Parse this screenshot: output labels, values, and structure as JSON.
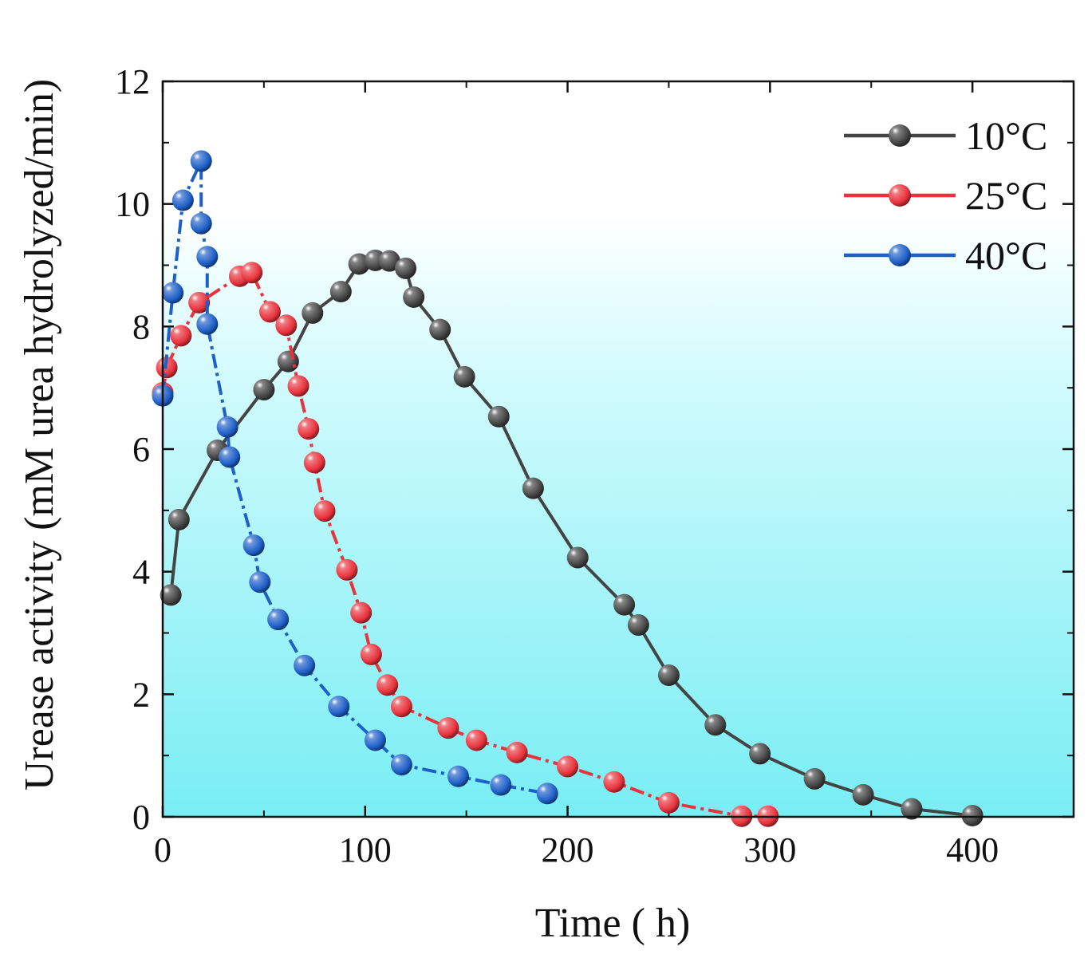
{
  "chart_data": {
    "type": "line",
    "title": "",
    "xlabel": "Time ( h)",
    "ylabel": "Urease activity (mM urea hydrolyzed/min)",
    "xlim": [
      0,
      450
    ],
    "ylim": [
      0,
      12
    ],
    "xticks": [
      0,
      100,
      200,
      300,
      400
    ],
    "yticks": [
      0,
      2,
      4,
      6,
      8,
      10,
      12
    ],
    "legend_position": "top-right",
    "background": "vertical gradient: white at top to cyan at bottom",
    "series": [
      {
        "name": "10°C",
        "color": "#444444",
        "marker": "sphere",
        "line_style": "solid",
        "x": [
          4,
          8,
          27,
          50,
          62,
          74,
          88,
          97,
          105,
          112,
          120,
          124,
          137,
          149,
          166,
          183,
          205,
          228,
          235,
          250,
          273,
          295,
          322,
          346,
          370,
          400
        ],
        "y": [
          3.62,
          4.85,
          5.98,
          6.97,
          7.43,
          8.22,
          8.57,
          9.02,
          9.08,
          9.07,
          8.95,
          8.48,
          7.95,
          7.18,
          6.53,
          5.36,
          4.23,
          3.46,
          3.13,
          2.31,
          1.5,
          1.03,
          0.62,
          0.36,
          0.13,
          0.02
        ]
      },
      {
        "name": "25°C",
        "color": "#e8323c",
        "marker": "sphere",
        "line_style": "dash-dot",
        "x": [
          0,
          2,
          9,
          18,
          38,
          44,
          53,
          61,
          67,
          72,
          75,
          80,
          91,
          98,
          103,
          111,
          118,
          141,
          155,
          175,
          200,
          223,
          250,
          286,
          299
        ],
        "y": [
          6.92,
          7.33,
          7.85,
          8.39,
          8.82,
          8.88,
          8.24,
          8.02,
          7.03,
          6.33,
          5.78,
          4.99,
          4.03,
          3.33,
          2.65,
          2.15,
          1.8,
          1.45,
          1.25,
          1.05,
          0.82,
          0.57,
          0.23,
          0.01,
          0.01
        ]
      },
      {
        "name": "40°C",
        "color": "#1e5fc8",
        "marker": "sphere",
        "line_style": "dash-dot",
        "x": [
          0,
          5,
          10,
          19,
          19,
          22,
          22,
          32,
          33,
          45,
          48,
          57,
          70,
          87,
          105,
          118,
          146,
          167,
          190
        ],
        "y": [
          6.87,
          8.55,
          10.06,
          10.7,
          9.68,
          9.14,
          8.04,
          6.36,
          5.87,
          4.43,
          3.83,
          3.22,
          2.47,
          1.8,
          1.25,
          0.85,
          0.66,
          0.52,
          0.38
        ]
      }
    ]
  }
}
